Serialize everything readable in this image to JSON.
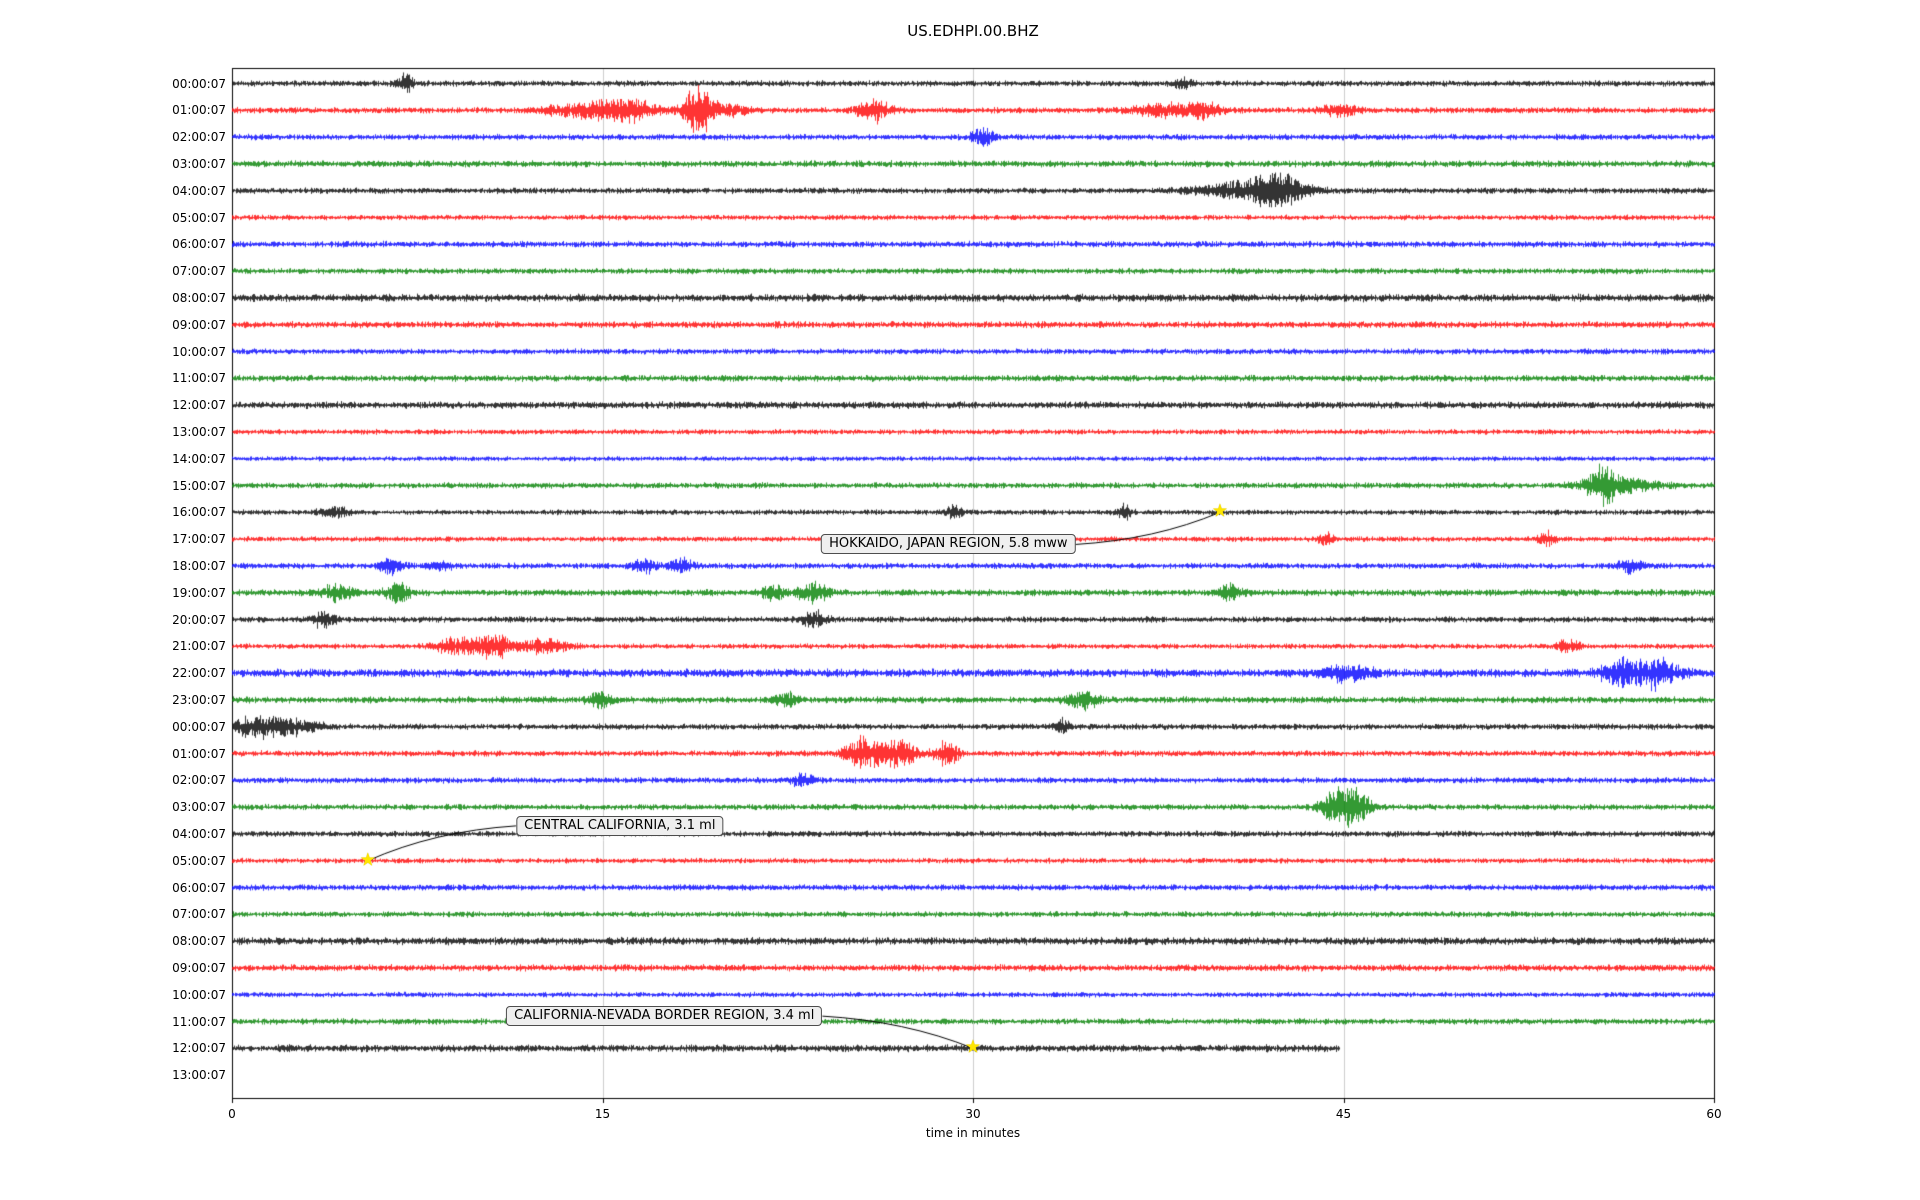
{
  "chart_data": {
    "type": "line",
    "subtype": "seismogram-helicorder",
    "title": "US.EDHPI.00.BHZ",
    "xlabel": "time in minutes",
    "xlim": [
      0,
      60
    ],
    "xticks": [
      0,
      15,
      30,
      45,
      60
    ],
    "gridlines_at": [
      15,
      30,
      45
    ],
    "grid": true,
    "colors": {
      "black": "#000000",
      "red": "#ff0000",
      "blue": "#0000ff",
      "green": "#008000",
      "event_star": "#ffe600"
    },
    "rows": [
      {
        "label": "00:00:07",
        "color": "#000000",
        "base": 2.5,
        "end": 60,
        "bursts": [
          [
            7.0,
            0.25,
            9
          ],
          [
            38.5,
            0.25,
            6
          ]
        ]
      },
      {
        "label": "01:00:07",
        "color": "#ff0000",
        "base": 2.5,
        "end": 60,
        "bursts": [
          [
            14.6,
            1.2,
            10
          ],
          [
            16.2,
            0.7,
            9
          ],
          [
            18.8,
            0.35,
            26
          ],
          [
            19.5,
            0.8,
            9
          ],
          [
            26.0,
            0.5,
            13
          ],
          [
            37.6,
            0.9,
            7
          ],
          [
            39.4,
            0.5,
            9
          ],
          [
            44.8,
            0.5,
            8
          ]
        ]
      },
      {
        "label": "02:00:07",
        "color": "#0000ff",
        "base": 2.5,
        "end": 60,
        "bursts": [
          [
            30.4,
            0.35,
            9
          ]
        ]
      },
      {
        "label": "03:00:07",
        "color": "#008000",
        "base": 2.8,
        "end": 60,
        "bursts": []
      },
      {
        "label": "04:00:07",
        "color": "#000000",
        "base": 2.5,
        "end": 60,
        "bursts": [
          [
            40.2,
            1.0,
            7
          ],
          [
            41.6,
            0.7,
            8
          ],
          [
            42.3,
            0.5,
            17
          ],
          [
            43.2,
            0.7,
            6
          ]
        ]
      },
      {
        "label": "05:00:07",
        "color": "#ff0000",
        "base": 2.2,
        "end": 60,
        "bursts": []
      },
      {
        "label": "06:00:07",
        "color": "#0000ff",
        "base": 2.6,
        "end": 60,
        "bursts": []
      },
      {
        "label": "07:00:07",
        "color": "#008000",
        "base": 2.4,
        "end": 60,
        "bursts": []
      },
      {
        "label": "08:00:07",
        "color": "#000000",
        "base": 3.2,
        "end": 60,
        "bursts": []
      },
      {
        "label": "09:00:07",
        "color": "#ff0000",
        "base": 2.8,
        "end": 60,
        "bursts": []
      },
      {
        "label": "10:00:07",
        "color": "#0000ff",
        "base": 2.4,
        "end": 60,
        "bursts": []
      },
      {
        "label": "11:00:07",
        "color": "#008000",
        "base": 2.7,
        "end": 60,
        "bursts": []
      },
      {
        "label": "12:00:07",
        "color": "#000000",
        "base": 3.0,
        "end": 60,
        "bursts": []
      },
      {
        "label": "13:00:07",
        "color": "#ff0000",
        "base": 2.2,
        "end": 60,
        "bursts": []
      },
      {
        "label": "14:00:07",
        "color": "#0000ff",
        "base": 2.0,
        "end": 60,
        "bursts": []
      },
      {
        "label": "15:00:07",
        "color": "#008000",
        "base": 2.5,
        "end": 60,
        "bursts": [
          [
            55.4,
            0.4,
            20
          ],
          [
            56.2,
            1.0,
            9
          ]
        ]
      },
      {
        "label": "16:00:07",
        "color": "#000000",
        "base": 2.2,
        "end": 60,
        "bursts": [
          [
            4.1,
            0.4,
            6
          ],
          [
            29.2,
            0.25,
            7
          ],
          [
            36.1,
            0.2,
            9
          ]
        ]
      },
      {
        "label": "17:00:07",
        "color": "#ff0000",
        "base": 2.2,
        "end": 60,
        "bursts": [
          [
            44.2,
            0.25,
            7
          ],
          [
            53.2,
            0.25,
            8
          ]
        ]
      },
      {
        "label": "18:00:07",
        "color": "#0000ff",
        "base": 2.5,
        "end": 60,
        "bursts": [
          [
            6.4,
            0.35,
            8
          ],
          [
            8.4,
            0.3,
            6
          ],
          [
            16.7,
            0.35,
            9
          ],
          [
            18.2,
            0.35,
            9
          ],
          [
            56.6,
            0.35,
            8
          ]
        ]
      },
      {
        "label": "19:00:07",
        "color": "#008000",
        "base": 2.8,
        "end": 60,
        "bursts": [
          [
            4.2,
            0.45,
            9
          ],
          [
            6.7,
            0.35,
            10
          ],
          [
            21.9,
            0.35,
            8
          ],
          [
            23.5,
            0.45,
            11
          ],
          [
            40.4,
            0.35,
            9
          ]
        ]
      },
      {
        "label": "20:00:07",
        "color": "#000000",
        "base": 2.5,
        "end": 60,
        "bursts": [
          [
            3.7,
            0.35,
            8
          ],
          [
            23.5,
            0.35,
            10
          ]
        ]
      },
      {
        "label": "21:00:07",
        "color": "#ff0000",
        "base": 2.2,
        "end": 60,
        "bursts": [
          [
            9.1,
            0.7,
            9
          ],
          [
            10.6,
            0.5,
            12
          ],
          [
            12.6,
            0.7,
            8
          ],
          [
            54.1,
            0.35,
            7
          ]
        ]
      },
      {
        "label": "22:00:07",
        "color": "#0000ff",
        "base": 3.4,
        "end": 60,
        "bursts": [
          [
            45.1,
            0.7,
            9
          ],
          [
            56.1,
            0.5,
            13
          ],
          [
            57.6,
            0.7,
            15
          ]
        ]
      },
      {
        "label": "23:00:07",
        "color": "#008000",
        "base": 2.8,
        "end": 60,
        "bursts": [
          [
            14.9,
            0.35,
            9
          ],
          [
            22.4,
            0.35,
            8
          ],
          [
            34.4,
            0.45,
            10
          ]
        ]
      },
      {
        "label": "00:00:07",
        "color": "#000000",
        "base": 2.5,
        "end": 60,
        "bursts": [
          [
            0.9,
            0.7,
            9
          ],
          [
            2.3,
            0.9,
            8
          ],
          [
            33.6,
            0.25,
            8
          ]
        ]
      },
      {
        "label": "01:00:07",
        "color": "#ff0000",
        "base": 2.5,
        "end": 60,
        "bursts": [
          [
            25.4,
            0.45,
            13
          ],
          [
            26.2,
            0.7,
            9
          ],
          [
            27.1,
            0.45,
            12
          ],
          [
            28.9,
            0.35,
            13
          ]
        ]
      },
      {
        "label": "02:00:07",
        "color": "#0000ff",
        "base": 2.5,
        "end": 60,
        "bursts": [
          [
            23.1,
            0.35,
            7
          ]
        ]
      },
      {
        "label": "03:00:07",
        "color": "#008000",
        "base": 2.5,
        "end": 60,
        "bursts": [
          [
            44.4,
            0.35,
            9
          ],
          [
            45.1,
            0.45,
            21
          ],
          [
            45.7,
            0.35,
            9
          ]
        ]
      },
      {
        "label": "04:00:07",
        "color": "#000000",
        "base": 2.5,
        "end": 60,
        "bursts": []
      },
      {
        "label": "05:00:07",
        "color": "#ff0000",
        "base": 2.2,
        "end": 60,
        "bursts": []
      },
      {
        "label": "06:00:07",
        "color": "#0000ff",
        "base": 2.5,
        "end": 60,
        "bursts": []
      },
      {
        "label": "07:00:07",
        "color": "#008000",
        "base": 2.4,
        "end": 60,
        "bursts": []
      },
      {
        "label": "08:00:07",
        "color": "#000000",
        "base": 3.2,
        "end": 60,
        "bursts": []
      },
      {
        "label": "09:00:07",
        "color": "#ff0000",
        "base": 2.8,
        "end": 60,
        "bursts": []
      },
      {
        "label": "10:00:07",
        "color": "#0000ff",
        "base": 2.2,
        "end": 60,
        "bursts": []
      },
      {
        "label": "11:00:07",
        "color": "#008000",
        "base": 2.5,
        "end": 60,
        "bursts": []
      },
      {
        "label": "12:00:07",
        "color": "#000000",
        "base": 3.0,
        "end": 44.8,
        "bursts": []
      },
      {
        "label": "13:00:07",
        "color": null,
        "base": 0,
        "end": 0,
        "bursts": []
      }
    ],
    "events": [
      {
        "label": "HOKKAIDO, JAPAN REGION, 5.8 mww",
        "star_minute": 40.0,
        "star_row": 16,
        "box_minute": 29.0,
        "box_row": 17.2,
        "leader_from": "right"
      },
      {
        "label": "CENTRAL CALIFORNIA, 3.1 ml",
        "star_minute": 5.5,
        "star_row": 29,
        "box_minute": 15.7,
        "box_row": 27.7,
        "leader_from": "left"
      },
      {
        "label": "CALIFORNIA-NEVADA BORDER REGION, 3.4 ml",
        "star_minute": 30.0,
        "star_row": 36,
        "box_minute": 17.5,
        "box_row": 34.8,
        "leader_from": "right"
      }
    ]
  }
}
